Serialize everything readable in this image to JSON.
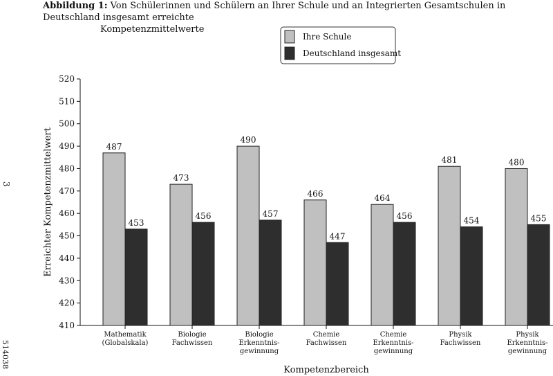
{
  "caption": {
    "label": "Abbildung 1:",
    "text_line1": "Von Schülerinnen und Schülern an Ihrer Schule und an Integrierten Gesamtschulen in Deutschland insgesamt erreichte",
    "text_line2": "Kompetenzmittelwerte"
  },
  "side": {
    "page_number": "3",
    "doc_code": "514038"
  },
  "colors": {
    "ihre_schule": "#c0c0c0",
    "deutschland": "#2e2e2e"
  },
  "chart_data": {
    "type": "bar",
    "xlabel": "Kompetenzbereich",
    "ylabel": "Erreichter Kompetenzmittelwert",
    "ylim": [
      410,
      520
    ],
    "yticks": [
      410,
      420,
      430,
      440,
      450,
      460,
      470,
      480,
      490,
      500,
      510,
      520
    ],
    "grid": false,
    "legend_position": "top-center",
    "categories": [
      [
        "Mathematik",
        "(Globalskala)"
      ],
      [
        "Biologie",
        "Fachwissen"
      ],
      [
        "Biologie",
        "Erkenntnis-",
        "gewinnung"
      ],
      [
        "Chemie",
        "Fachwissen"
      ],
      [
        "Chemie",
        "Erkenntnis-",
        "gewinnung"
      ],
      [
        "Physik",
        "Fachwissen"
      ],
      [
        "Physik",
        "Erkenntnis-",
        "gewinnung"
      ]
    ],
    "series": [
      {
        "name": "Ihre Schule",
        "values": [
          487,
          473,
          490,
          466,
          464,
          481,
          480
        ]
      },
      {
        "name": "Deutschland insgesamt",
        "values": [
          453,
          456,
          457,
          447,
          456,
          454,
          455
        ]
      }
    ]
  }
}
